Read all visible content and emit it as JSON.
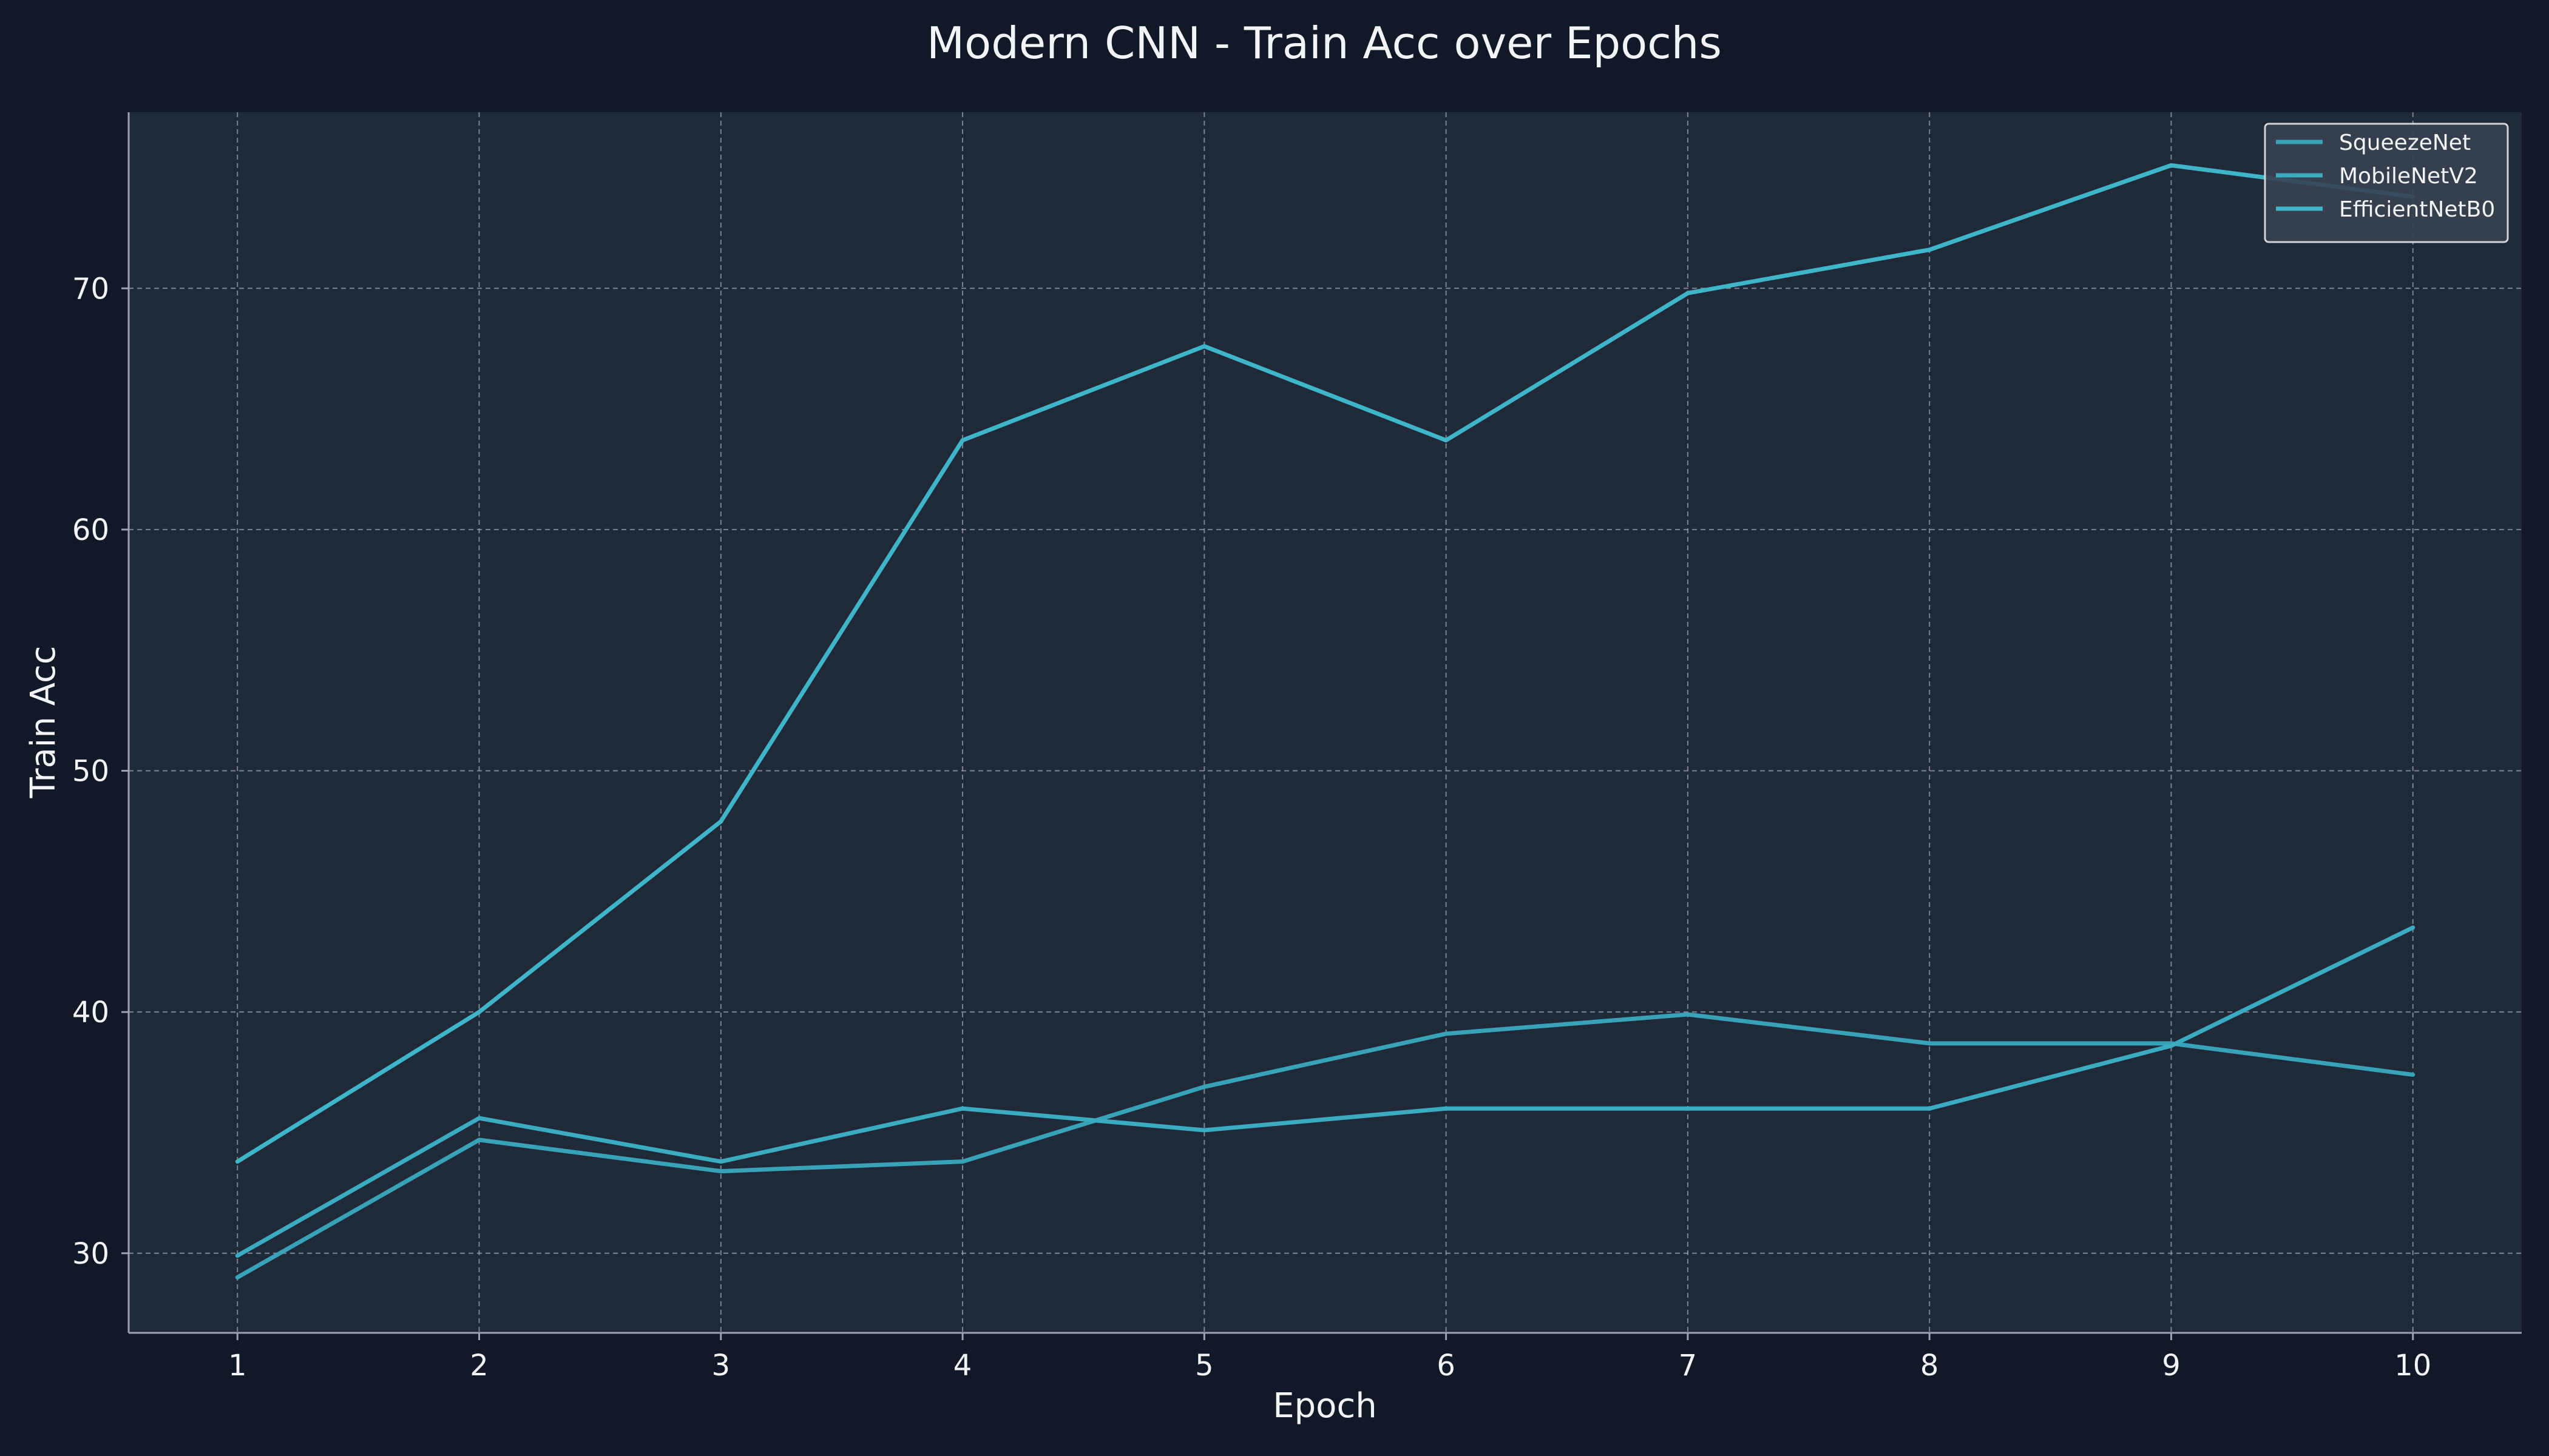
{
  "chart_data": {
    "type": "line",
    "title": "Modern CNN - Train Acc over Epochs",
    "xlabel": "Epoch",
    "ylabel": "Train Acc",
    "x": [
      1,
      2,
      3,
      4,
      5,
      6,
      7,
      8,
      9,
      10
    ],
    "xlim": [
      0.55,
      10.45
    ],
    "ylim": [
      26.7,
      77.3
    ],
    "xticks": [
      1,
      2,
      3,
      4,
      5,
      6,
      7,
      8,
      9,
      10
    ],
    "yticks": [
      30,
      40,
      50,
      60,
      70
    ],
    "grid": true,
    "legend_position": "top-right",
    "series": [
      {
        "name": "SqueezeNet",
        "color": "#38a3b8",
        "values": [
          29.0,
          34.7,
          33.4,
          33.8,
          36.9,
          39.1,
          39.9,
          38.7,
          38.7,
          37.4
        ]
      },
      {
        "name": "MobileNetV2",
        "color": "#3aabc0",
        "values": [
          29.9,
          35.6,
          33.8,
          36.0,
          35.1,
          36.0,
          36.0,
          36.0,
          38.6,
          43.5
        ]
      },
      {
        "name": "EfficientNetB0",
        "color": "#3fb5c9",
        "values": [
          33.8,
          40.0,
          47.9,
          63.7,
          67.6,
          63.7,
          69.8,
          71.6,
          75.1,
          73.8
        ]
      }
    ]
  },
  "theme": {
    "background": "#111827",
    "plot_background": "#1f2937",
    "text_color": "#f3f4f6",
    "grid_color": "#9ca3af",
    "axis_color": "#9ca3af"
  }
}
